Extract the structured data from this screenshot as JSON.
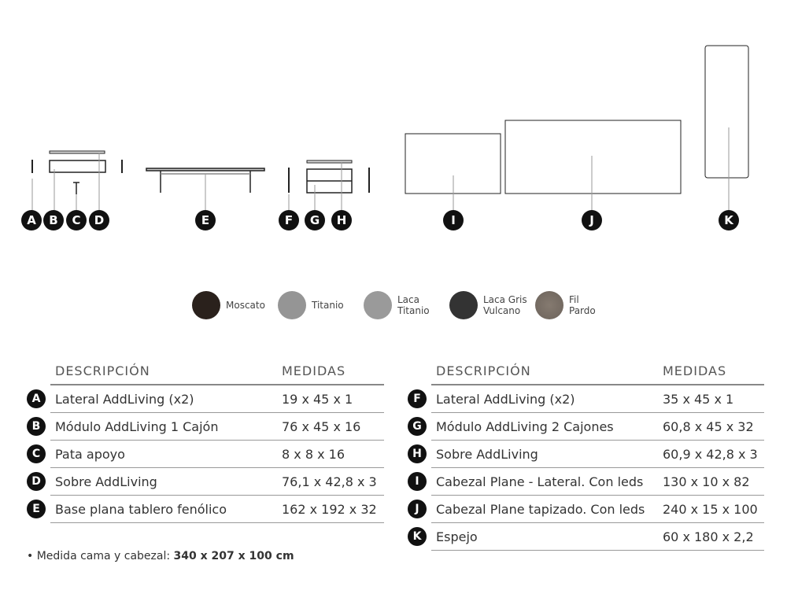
{
  "diagram": {
    "labels": [
      "A",
      "B",
      "C",
      "D",
      "E",
      "F",
      "G",
      "H",
      "I",
      "J",
      "K"
    ]
  },
  "swatches": [
    {
      "label": "Moscato",
      "color": "#2a211c"
    },
    {
      "label": "Titanio",
      "color": "#959595"
    },
    {
      "label": "Laca\nTitanio",
      "color": "#9a9a9a"
    },
    {
      "label": "Laca Gris\nVulcano",
      "color": "#333333"
    },
    {
      "label": "Fil\nPardo",
      "color": "#7a7067"
    }
  ],
  "tables": [
    {
      "headers": [
        "DESCRIPCIÓN",
        "MEDIDAS"
      ],
      "rows": [
        {
          "key": "A",
          "desc": "Lateral AddLiving (x2)",
          "size": "19 x 45 x 1"
        },
        {
          "key": "B",
          "desc": "Módulo AddLiving 1 Cajón",
          "size": "76 x 45 x 16"
        },
        {
          "key": "C",
          "desc": "Pata apoyo",
          "size": "8 x 8 x 16"
        },
        {
          "key": "D",
          "desc": "Sobre AddLiving",
          "size": "76,1 x 42,8 x 3"
        },
        {
          "key": "E",
          "desc": "Base plana tablero fenólico",
          "size": "162 x 192 x 32"
        }
      ]
    },
    {
      "headers": [
        "DESCRIPCIÓN",
        "MEDIDAS"
      ],
      "rows": [
        {
          "key": "F",
          "desc": "Lateral AddLiving (x2)",
          "size": "35 x 45 x 1"
        },
        {
          "key": "G",
          "desc": "Módulo AddLiving 2 Cajones",
          "size": "60,8 x 45 x 32"
        },
        {
          "key": "H",
          "desc": "Sobre AddLiving",
          "size": "60,9 x 42,8 x 3"
        },
        {
          "key": "I",
          "desc": "Cabezal Plane - Lateral. Con leds",
          "size": "130 x 10 x 82"
        },
        {
          "key": "J",
          "desc": "Cabezal Plane tapizado. Con leds",
          "size": "240 x 15 x 100"
        },
        {
          "key": "K",
          "desc": "Espejo",
          "size": "60 x 180 x 2,2"
        }
      ]
    }
  ],
  "note": {
    "prefix": "• Medida cama y cabezal: ",
    "value": "340 x 207 x 100 cm"
  }
}
